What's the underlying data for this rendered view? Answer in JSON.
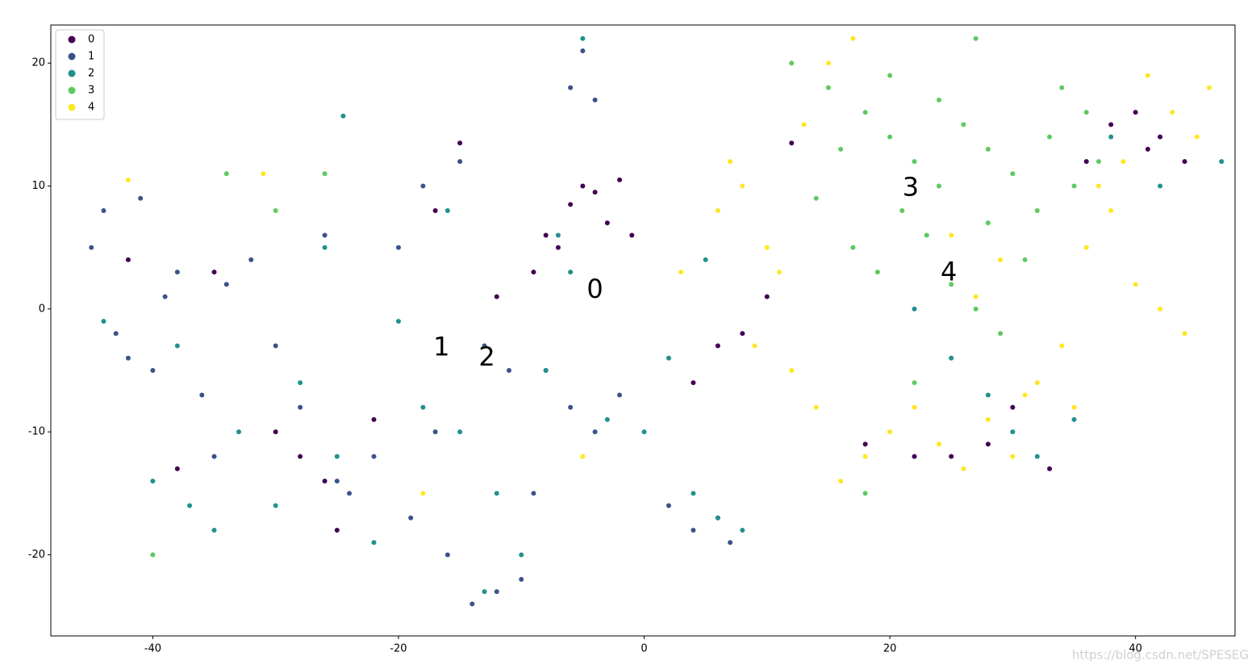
{
  "chart_data": {
    "type": "scatter",
    "xlim": [
      -48.3,
      48.1
    ],
    "ylim": [
      -26.6,
      23.1
    ],
    "xticks": [
      -40,
      -20,
      0,
      20,
      40
    ],
    "yticks": [
      -20,
      -10,
      0,
      10,
      20
    ],
    "grid": false,
    "legend": "upper left",
    "series": [
      {
        "name": "0",
        "color": "#440154",
        "x": [
          -5,
          -4,
          -6,
          -2,
          -3,
          -15,
          -22,
          -28,
          -26,
          -30,
          -35,
          -38,
          -42,
          -17,
          -9,
          -8,
          -7,
          6,
          8,
          10,
          12,
          18,
          22,
          25,
          30,
          33,
          38,
          40,
          42,
          44,
          41,
          36,
          28,
          4,
          -1,
          -12,
          -25
        ],
        "values": [
          10,
          9.5,
          8.5,
          10.5,
          7,
          13.5,
          -9,
          -12,
          -14,
          -10,
          3,
          -13,
          4,
          8,
          3,
          6,
          5,
          -3,
          -2,
          1,
          13.5,
          -11,
          -12,
          -12,
          -8,
          -13,
          15,
          16,
          14,
          12,
          13,
          12,
          -11,
          -6,
          6,
          1,
          -18
        ]
      },
      {
        "name": "1",
        "color": "#3b528b",
        "x": [
          -45,
          -43,
          -40,
          -38,
          -44,
          -41,
          -36,
          -34,
          -30,
          -28,
          -26,
          -24,
          -22,
          -20,
          -18,
          -16,
          -14,
          -12,
          -10,
          -8,
          -6,
          -4,
          -2,
          -15,
          -13,
          -11,
          -9,
          -19,
          -17,
          -32,
          -35,
          -39,
          -42,
          -5,
          -6,
          -4,
          2,
          4,
          6,
          7,
          -25
        ],
        "values": [
          5,
          -2,
          -5,
          3,
          8,
          9,
          -7,
          2,
          -3,
          -8,
          6,
          -15,
          -12,
          5,
          10,
          -20,
          -24,
          -23,
          -22,
          -5,
          -8,
          -10,
          -7,
          12,
          -3,
          -5,
          -15,
          -17,
          -10,
          4,
          -12,
          1,
          -4,
          21,
          18,
          17,
          -16,
          -18,
          -17,
          -19,
          -14
        ]
      },
      {
        "name": "2",
        "color": "#21918c",
        "x": [
          -40,
          -37,
          -35,
          -30,
          -28,
          -25,
          -22,
          -18,
          -15,
          -12,
          -10,
          -8,
          -6,
          -3,
          0,
          2,
          4,
          6,
          8,
          -5,
          -7,
          -24.5,
          -33,
          -20,
          -16,
          -13,
          28,
          30,
          32,
          35,
          25,
          22,
          38,
          42,
          47,
          -44,
          -38,
          -26,
          5
        ],
        "values": [
          -14,
          -16,
          -18,
          -16,
          -6,
          -12,
          -19,
          -8,
          -10,
          -15,
          -20,
          -5,
          3,
          -9,
          -10,
          -4,
          -15,
          -17,
          -18,
          22,
          6,
          15.7,
          -10,
          -1,
          8,
          -23,
          -7,
          -10,
          -12,
          -9,
          -4,
          0,
          14,
          10,
          12,
          -1,
          -3,
          5,
          4
        ]
      },
      {
        "name": "3",
        "color": "#5ec962",
        "x": [
          12,
          15,
          18,
          20,
          22,
          24,
          26,
          28,
          30,
          32,
          34,
          36,
          17,
          19,
          21,
          23,
          25,
          27,
          29,
          31,
          14,
          16,
          20,
          24,
          28,
          33,
          37,
          -34,
          -26,
          -40,
          -30,
          27,
          22,
          18,
          35
        ],
        "values": [
          20,
          18,
          16,
          14,
          12,
          10,
          15,
          13,
          11,
          8,
          18,
          16,
          5,
          3,
          8,
          6,
          2,
          0,
          -2,
          4,
          9,
          13,
          19,
          17,
          7,
          14,
          12,
          11,
          11,
          -20,
          8,
          22,
          -6,
          -15,
          10
        ]
      },
      {
        "name": "4",
        "color": "#fde725",
        "x": [
          6,
          8,
          10,
          12,
          14,
          16,
          18,
          20,
          22,
          24,
          26,
          28,
          30,
          32,
          34,
          36,
          38,
          40,
          42,
          44,
          46,
          41,
          43,
          45,
          39,
          13,
          15,
          11,
          9,
          7,
          25,
          27,
          31,
          35,
          37,
          -42,
          -31,
          -18,
          -5,
          3,
          17,
          29
        ],
        "values": [
          8,
          10,
          5,
          -5,
          -8,
          -14,
          -12,
          -10,
          -8,
          -11,
          -13,
          -9,
          -12,
          -6,
          -3,
          5,
          8,
          2,
          0,
          -2,
          18,
          19,
          16,
          14,
          12,
          15,
          20,
          3,
          -3,
          12,
          6,
          1,
          -7,
          -8,
          10,
          10.5,
          11,
          -15,
          -12,
          3,
          22,
          4
        ]
      }
    ],
    "annotations": [
      {
        "text": "0",
        "x": -4,
        "y": 1.5
      },
      {
        "text": "1",
        "x": -16.5,
        "y": -3.2
      },
      {
        "text": "2",
        "x": -12.8,
        "y": -4
      },
      {
        "text": "3",
        "x": 21.7,
        "y": 9.8
      },
      {
        "text": "4",
        "x": 24.8,
        "y": 2.9
      }
    ],
    "watermark": "https://blog.csdn.net/SPESEG"
  }
}
